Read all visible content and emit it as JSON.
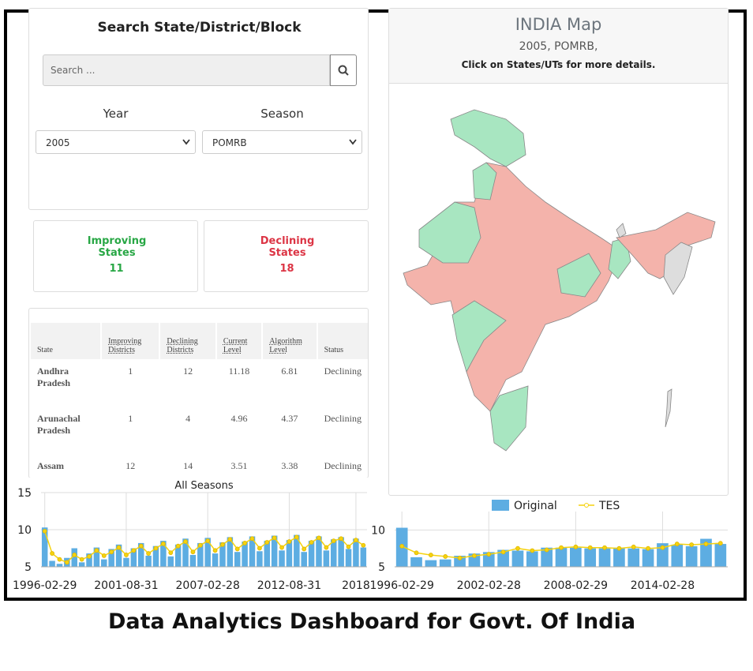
{
  "search": {
    "title": "Search State/District/Block",
    "placeholder": "Search ...",
    "year_label": "Year",
    "season_label": "Season",
    "year": "2005",
    "season": "POMRB"
  },
  "summary": {
    "improving_label": "Improving States",
    "improving": 11,
    "declining_label": "Declining States",
    "declining": 18
  },
  "table": {
    "headers": [
      "State",
      "Improving Districts",
      "Declining Districts",
      "Current Level",
      "Algorithm Level",
      "Status"
    ],
    "rows": [
      [
        "Andhra Pradesh",
        1,
        12,
        11.18,
        6.81,
        "Declining"
      ],
      [
        "Arunachal Pradesh",
        1,
        4,
        4.96,
        4.37,
        "Declining"
      ],
      [
        "Assam",
        12,
        14,
        3.51,
        3.38,
        "Declining"
      ]
    ]
  },
  "map": {
    "title": "INDIA Map",
    "subtitle": "2005, POMRB,",
    "hint": "Click on States/UTs for more details."
  },
  "chart_data": [
    {
      "type": "bar_line",
      "title": "All Seasons",
      "categories": [
        "1996-02-29",
        null,
        null,
        null,
        null,
        null,
        null,
        null,
        null,
        null,
        null,
        "2001-08-31",
        null,
        null,
        null,
        null,
        null,
        null,
        null,
        null,
        null,
        null,
        "2007-02-28",
        null,
        null,
        null,
        null,
        null,
        null,
        null,
        null,
        null,
        null,
        "2012-08-31",
        null,
        null,
        null,
        null,
        null,
        null,
        null,
        null,
        "2018",
        null
      ],
      "series": [
        {
          "color": "#5dade2",
          "values": [
            10.3,
            5.8,
            5.4,
            6.2,
            7.5,
            5.6,
            6.8,
            7.6,
            6.0,
            7.4,
            8.0,
            6.2,
            7.5,
            8.2,
            6.5,
            7.8,
            8.5,
            6.4,
            8.0,
            8.8,
            6.6,
            8.2,
            8.9,
            6.8,
            8.3,
            9.0,
            7.0,
            8.4,
            9.1,
            7.1,
            8.5,
            9.2,
            7.2,
            8.6,
            9.3,
            7.0,
            8.5,
            9.1,
            7.2,
            8.7,
            9.0,
            7.4,
            8.8,
            7.6
          ]
        },
        {
          "color": "#f5d20f",
          "values": [
            9.8,
            6.8,
            6.0,
            5.6,
            6.6,
            6.0,
            6.4,
            7.2,
            6.5,
            7.0,
            7.6,
            6.6,
            7.2,
            7.8,
            6.8,
            7.5,
            8.1,
            6.9,
            7.8,
            8.4,
            7.0,
            7.9,
            8.5,
            7.2,
            8.0,
            8.7,
            7.4,
            8.2,
            8.8,
            7.5,
            8.3,
            8.9,
            7.6,
            8.4,
            9.0,
            7.4,
            8.3,
            8.9,
            7.6,
            8.5,
            8.8,
            7.7,
            8.6,
            7.9
          ]
        }
      ],
      "ylim": [
        5,
        15
      ],
      "yticks": [
        5,
        10,
        15
      ],
      "grid": true
    },
    {
      "type": "bar_line",
      "categories": [
        "1996-02-29",
        null,
        null,
        null,
        null,
        null,
        "2002-02-28",
        null,
        null,
        null,
        null,
        null,
        "2008-02-29",
        null,
        null,
        null,
        null,
        null,
        "2014-02-28",
        null,
        null,
        null,
        null
      ],
      "series": [
        {
          "name": "Original",
          "color": "#5dade2",
          "values": [
            10.3,
            6.3,
            5.9,
            6.0,
            6.5,
            6.8,
            7.0,
            7.3,
            7.2,
            7.1,
            7.6,
            7.6,
            7.6,
            7.5,
            7.5,
            7.6,
            7.5,
            7.4,
            8.2,
            8.0,
            7.8,
            8.8,
            8.1
          ]
        },
        {
          "name": "TES",
          "color": "#f5d20f",
          "values": [
            7.8,
            6.9,
            6.6,
            6.4,
            6.2,
            6.5,
            6.7,
            7.0,
            7.5,
            7.2,
            7.3,
            7.6,
            7.7,
            7.6,
            7.6,
            7.5,
            7.7,
            7.5,
            7.6,
            8.1,
            8.0,
            8.1,
            8.2
          ]
        }
      ],
      "ylim": [
        5,
        12.5
      ],
      "yticks": [
        5,
        10
      ],
      "grid": true,
      "legend": "top"
    }
  ],
  "caption": "Data Analytics Dashboard for Govt. Of India"
}
